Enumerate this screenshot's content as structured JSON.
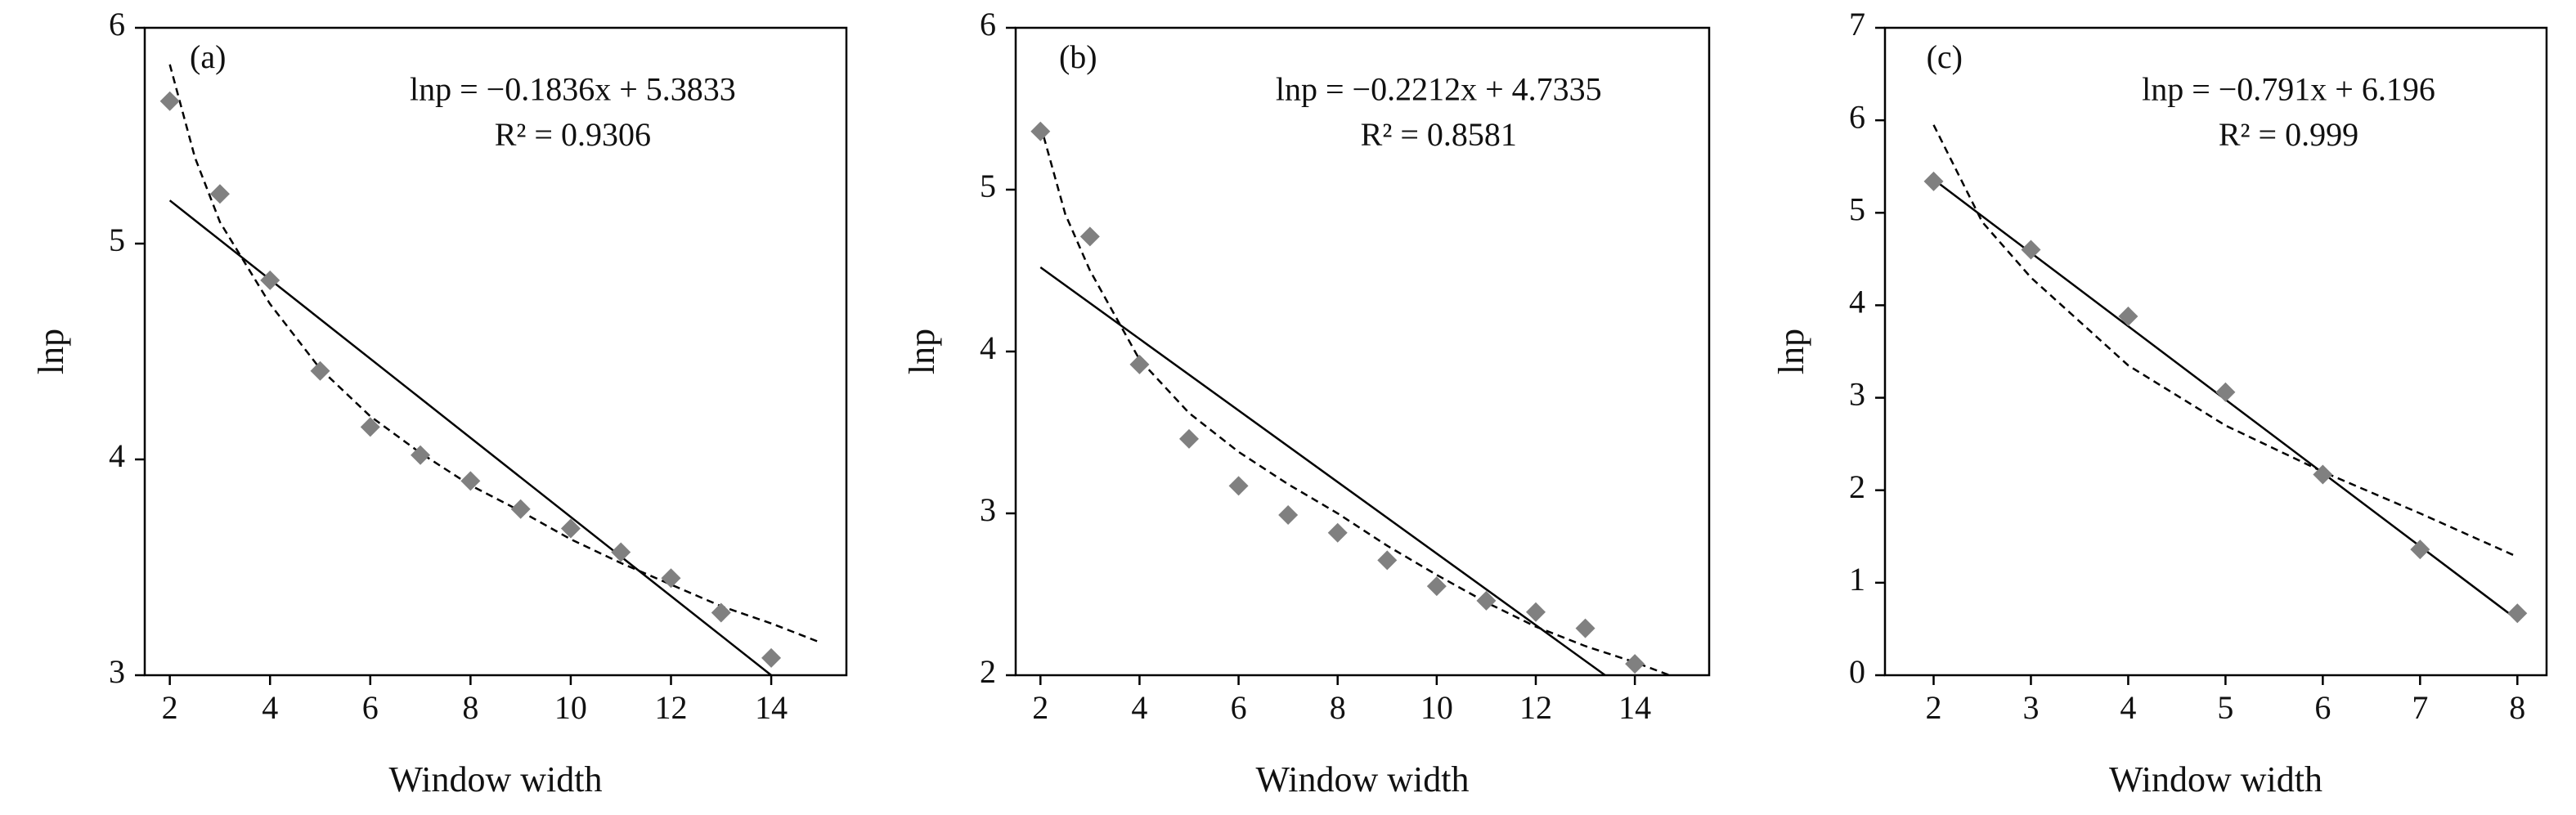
{
  "chart_data": [
    {
      "type": "scatter",
      "panel_label": "(a)",
      "equation": "lnp = −0.1836x + 5.3833",
      "r_squared": "R² = 0.9306",
      "x_label": "Window width",
      "y_label": "lnp",
      "color": "#808080",
      "xlim": [
        1.5,
        15.5
      ],
      "ylim": [
        3,
        6
      ],
      "xticks": [
        2,
        4,
        6,
        8,
        10,
        12,
        14
      ],
      "yticks": [
        3,
        4,
        5,
        6
      ],
      "points": {
        "x": [
          2,
          3,
          4,
          5,
          6,
          7,
          8,
          9,
          10,
          11,
          12,
          13,
          14
        ],
        "y": [
          5.66,
          5.23,
          4.83,
          4.41,
          4.15,
          4.02,
          3.9,
          3.77,
          3.68,
          3.57,
          3.45,
          3.29,
          3.08
        ]
      },
      "fit_line": {
        "x": [
          2,
          14
        ],
        "y": [
          5.2,
          3.0
        ]
      },
      "trend_curve": {
        "x": [
          2,
          2.5,
          3,
          4,
          5,
          6,
          7,
          8,
          9,
          10,
          11,
          12,
          13,
          14,
          15
        ],
        "y": [
          5.83,
          5.4,
          5.1,
          4.72,
          4.42,
          4.2,
          4.03,
          3.88,
          3.76,
          3.63,
          3.52,
          3.42,
          3.32,
          3.24,
          3.15
        ]
      }
    },
    {
      "type": "scatter",
      "panel_label": "(b)",
      "equation": "lnp = −0.2212x + 4.7335",
      "r_squared": "R² = 0.8581",
      "x_label": "Window width",
      "y_label": "lnp",
      "color": "#808080",
      "xlim": [
        1.5,
        15.5
      ],
      "ylim": [
        2,
        6
      ],
      "xticks": [
        2,
        4,
        6,
        8,
        10,
        12,
        14
      ],
      "yticks": [
        2,
        3,
        4,
        5,
        6
      ],
      "points": {
        "x": [
          2,
          3,
          4,
          5,
          6,
          7,
          8,
          9,
          10,
          11,
          12,
          13,
          14
        ],
        "y": [
          5.36,
          4.71,
          3.92,
          3.46,
          3.17,
          2.99,
          2.88,
          2.71,
          2.55,
          2.46,
          2.39,
          2.29,
          2.07
        ]
      },
      "fit_line": {
        "x": [
          2,
          13.4
        ],
        "y": [
          4.52,
          2.0
        ]
      },
      "trend_curve": {
        "x": [
          2,
          2.5,
          3,
          4,
          5,
          6,
          7,
          8,
          9,
          10,
          11,
          12,
          13,
          14,
          14.7
        ],
        "y": [
          5.4,
          4.85,
          4.5,
          3.95,
          3.62,
          3.38,
          3.18,
          3.0,
          2.8,
          2.62,
          2.45,
          2.3,
          2.18,
          2.08,
          2.0
        ]
      }
    },
    {
      "type": "scatter",
      "panel_label": "(c)",
      "equation": "lnp = −0.791x + 6.196",
      "r_squared": "R² = 0.999",
      "x_label": "Window width",
      "y_label": "lnp",
      "color": "#808080",
      "xlim": [
        1.5,
        8.3
      ],
      "ylim": [
        0,
        7
      ],
      "xticks": [
        2,
        3,
        4,
        5,
        6,
        7,
        8
      ],
      "yticks": [
        0,
        1,
        2,
        3,
        4,
        5,
        6,
        7
      ],
      "points": {
        "x": [
          2,
          3,
          4,
          5,
          6,
          7,
          8
        ],
        "y": [
          5.34,
          4.6,
          3.88,
          3.06,
          2.17,
          1.36,
          0.67
        ]
      },
      "fit_line": {
        "x": [
          2,
          8
        ],
        "y": [
          5.36,
          0.6
        ]
      },
      "trend_curve": {
        "x": [
          2,
          2.5,
          3,
          4,
          5,
          6,
          7,
          8
        ],
        "y": [
          5.95,
          4.9,
          4.3,
          3.35,
          2.7,
          2.2,
          1.75,
          1.28
        ]
      }
    }
  ]
}
